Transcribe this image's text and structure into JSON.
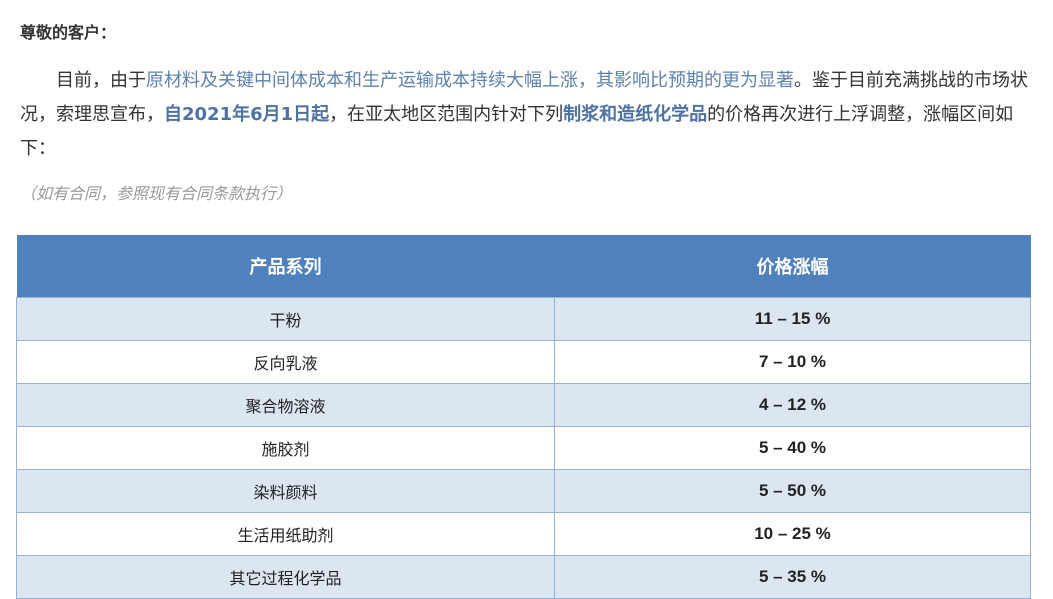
{
  "greeting": "尊敬的客户：",
  "paragraph": {
    "p1": "目前，由于",
    "h1": "原材料及关键中间体成本和生产运输成本持续大幅上涨，其影响比预期的更为显著",
    "p2": "。鉴于目前充满挑战的市场状况，索理思宣布，",
    "h2": "自2021年6月1日起",
    "p3": "，在亚太地区范围内针对下列",
    "h3": "制浆和造纸化学品",
    "p4": "的价格再次进行上浮调整，涨幅区间如下："
  },
  "note": "（如有合同，参照现有合同条款执行）",
  "table": {
    "headers": [
      "产品系列",
      "价格涨幅"
    ],
    "rows": [
      {
        "name": "干粉",
        "value": "11  – 15 %"
      },
      {
        "name": "反向乳液",
        "value": "7 – 10 %"
      },
      {
        "name": "聚合物溶液",
        "value": "4  – 12 %"
      },
      {
        "name": "施胶剂",
        "value": "5 – 40 %"
      },
      {
        "name": "染料颜料",
        "value": "5 – 50 %"
      },
      {
        "name": "生活用纸助剂",
        "value": "10 – 25 %"
      },
      {
        "name": "其它过程化学品",
        "value": "5 – 35 %"
      }
    ]
  },
  "colors": {
    "header": "#4f81bd",
    "row_alt": "#dce6f1",
    "highlight": "#5d82ad"
  }
}
